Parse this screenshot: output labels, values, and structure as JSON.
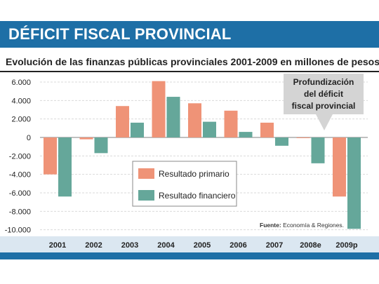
{
  "header": {
    "title": "DÉFICIT FISCAL PROVINCIAL"
  },
  "subtitle": "Evolución de las finanzas públicas provinciales 2001-2009 en millones de pesos",
  "chart_data": {
    "type": "bar",
    "categories": [
      "2001",
      "2002",
      "2003",
      "2004",
      "2005",
      "2006",
      "2007",
      "2008e",
      "2009p"
    ],
    "series": [
      {
        "name": "Resultado primario",
        "color": "#ef9377",
        "values": [
          -4000,
          -200,
          3400,
          6100,
          3700,
          2900,
          1600,
          -50,
          -6400
        ]
      },
      {
        "name": "Resultado financiero",
        "color": "#65a79a",
        "values": [
          -6400,
          -1700,
          1600,
          4400,
          1700,
          600,
          -900,
          -2800,
          -9900
        ]
      }
    ],
    "yticks": [
      "6.000",
      "4.000",
      "2.000",
      "0",
      "-2.000",
      "-4.000",
      "-6.000",
      "-8.000",
      "-10.000"
    ],
    "ylim": [
      -10400,
      6600
    ],
    "grid": true,
    "legend": "center",
    "annotation": [
      "Profundización",
      "del déficit",
      "fiscal provincial"
    ],
    "source_label": "Fuente:",
    "source_text": "Economía & Regiones."
  }
}
